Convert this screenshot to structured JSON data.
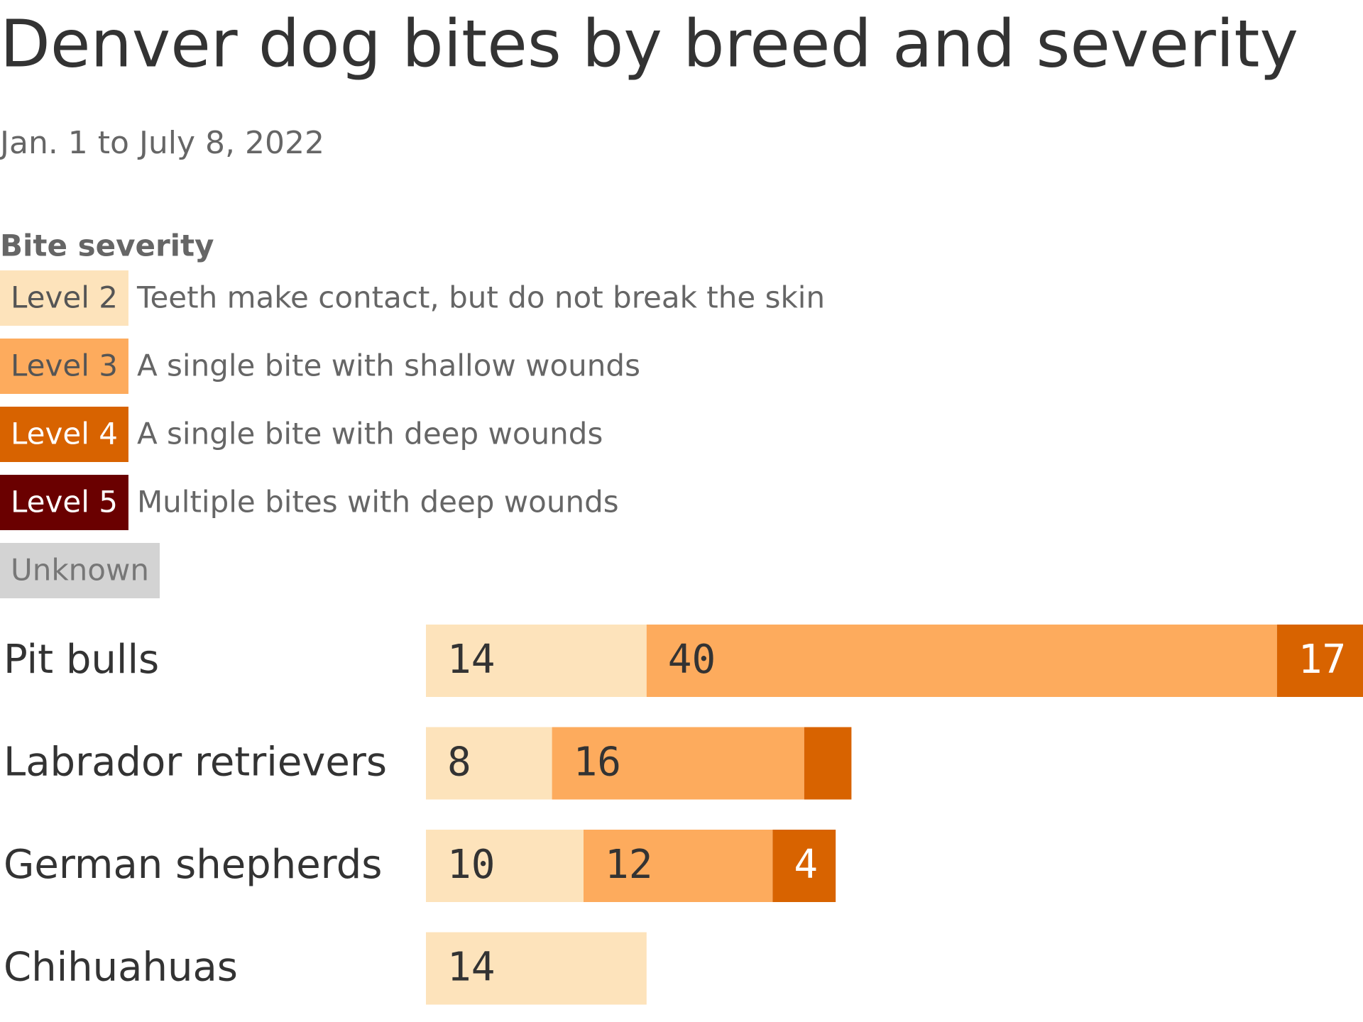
{
  "chart_data": {
    "type": "stacked-bar",
    "title": "Denver dog bites by breed and severity",
    "subtitle": "Jan. 1 to July 8, 2022",
    "legend_title": "Bite severity",
    "categories": [
      "Pit bulls",
      "Labrador retrievers",
      "German shepherds",
      "Chihuahuas"
    ],
    "series": [
      {
        "name": "Level 2",
        "description": "Teeth make contact, but do not break the skin",
        "color": "#fde3bb",
        "values": [
          14,
          8,
          10,
          14
        ]
      },
      {
        "name": "Level 3",
        "description": "A single bite with shallow wounds",
        "color": "#fdab5d",
        "values": [
          40,
          16,
          12,
          null
        ]
      },
      {
        "name": "Level 4",
        "description": "A single bite with deep wounds",
        "color": "#d86300",
        "values": [
          17,
          3,
          4,
          null
        ]
      },
      {
        "name": "Level 5",
        "description": "Multiple bites with deep wounds",
        "color": "#6a0000",
        "values": [
          null,
          null,
          null,
          null
        ]
      },
      {
        "name": "Unknown",
        "color": "#d3d3d3",
        "values": [
          null,
          null,
          null,
          null
        ]
      }
    ]
  }
}
